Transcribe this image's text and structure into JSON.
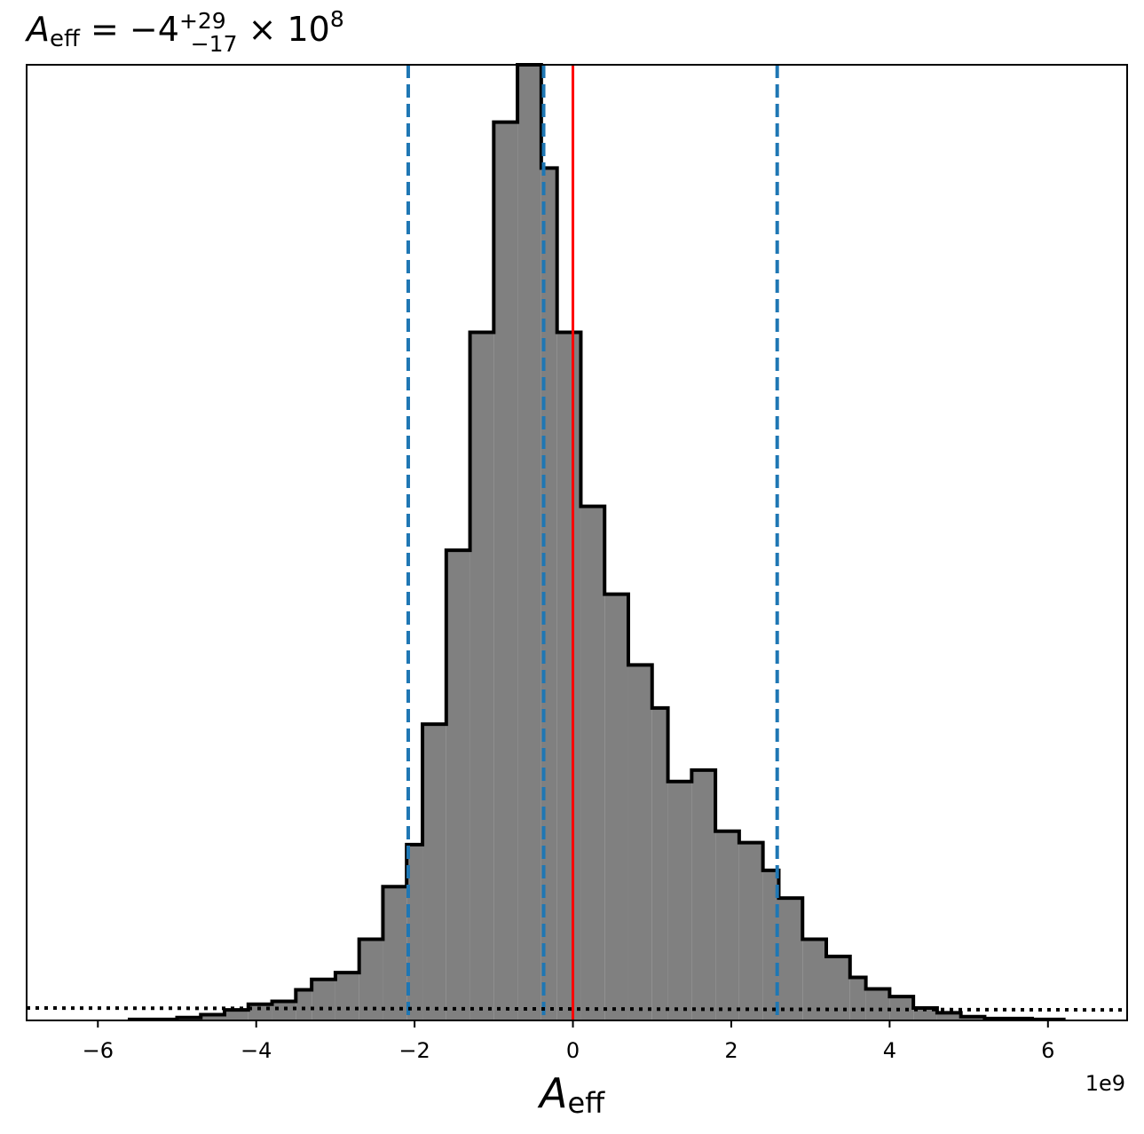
{
  "chart_data": {
    "type": "histogram",
    "title": {
      "symbol": "A",
      "subscript": "eff",
      "equals": " = ",
      "value": "−4",
      "upper_err": "+29",
      "lower_err": "−17",
      "times": " × 10",
      "exponent": "8"
    },
    "xlabel": {
      "symbol": "A",
      "subscript": "eff"
    },
    "offset_text": "1e9",
    "xlim": [
      -6.9,
      7.0
    ],
    "ylim": [
      0,
      1.0
    ],
    "x_ticks": [
      -6,
      -4,
      -2,
      0,
      2,
      4,
      6
    ],
    "x_tick_labels": [
      "−6",
      "−4",
      "−2",
      "0",
      "2",
      "4",
      "6"
    ],
    "y_ticks_visible": false,
    "grid": false,
    "bin_edges": [
      -5.6,
      -5.0,
      -4.7,
      -4.4,
      -4.1,
      -3.8,
      -3.5,
      -3.3,
      -3.0,
      -2.7,
      -2.4,
      -2.1,
      -1.9,
      -1.6,
      -1.3,
      -1.0,
      -0.7,
      -0.4,
      -0.2,
      0.1,
      0.4,
      0.7,
      1.0,
      1.2,
      1.5,
      1.8,
      2.1,
      2.4,
      2.6,
      2.9,
      3.2,
      3.5,
      3.7,
      4.0,
      4.3,
      4.6,
      4.9,
      5.2,
      5.8,
      6.2
    ],
    "bin_counts": [
      0.001,
      0.003,
      0.006,
      0.011,
      0.017,
      0.02,
      0.032,
      0.043,
      0.05,
      0.085,
      0.14,
      0.184,
      0.31,
      0.492,
      0.72,
      0.94,
      1.0,
      0.892,
      0.72,
      0.538,
      0.446,
      0.372,
      0.327,
      0.25,
      0.262,
      0.198,
      0.186,
      0.157,
      0.128,
      0.085,
      0.067,
      0.045,
      0.033,
      0.025,
      0.013,
      0.008,
      0.004,
      0.002,
      0.001
    ],
    "hist_fill": "#808080",
    "hist_edge": "#000000",
    "vlines": [
      {
        "x": -2.08,
        "style": "dashed",
        "color": "#1f77b4"
      },
      {
        "x": -0.37,
        "style": "dashed",
        "color": "#1f77b4"
      },
      {
        "x": 2.58,
        "style": "dashed",
        "color": "#1f77b4"
      },
      {
        "x": 0.0,
        "style": "solid",
        "color": "#ff0000"
      }
    ],
    "hline": {
      "y_start": 0.013,
      "y_end": 0.011,
      "style": "dotted",
      "color": "#000000"
    }
  }
}
